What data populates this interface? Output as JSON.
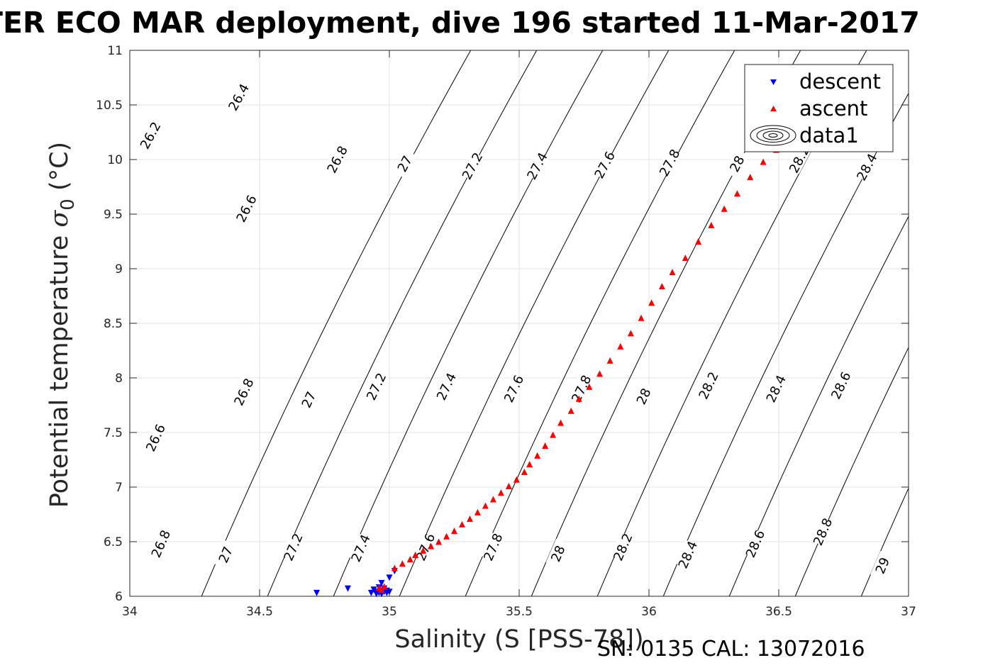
{
  "title": "TER ECO MAR deployment, dive 196 started 11-Mar-2017",
  "footer": "SN: 0135  CAL: 13072016",
  "chart_data": {
    "type": "scatter",
    "title": "TER ECO MAR deployment, dive 196 started 11-Mar-2017",
    "xlabel": "Salinity (S [PSS-78])",
    "ylabel_text": "Potential temperature ",
    "ylabel_sigma": "σ",
    "ylabel_sub": "0",
    "ylabel_unit": " (°C)",
    "xlim": [
      34,
      37
    ],
    "ylim": [
      6,
      11
    ],
    "xticks": [
      "34",
      "34.5",
      "35",
      "35.5",
      "36",
      "36.5",
      "37"
    ],
    "yticks": [
      "6",
      "6.5",
      "7",
      "7.5",
      "8",
      "8.5",
      "9",
      "9.5",
      "10",
      "10.5",
      "11"
    ],
    "grid": true,
    "legend_position": "top-right",
    "legend": [
      "descent",
      "ascent",
      "data1"
    ],
    "series": [
      {
        "name": "descent",
        "marker": "triangle-down",
        "color": "#0000ff",
        "points": [
          [
            34.72,
            6.03
          ],
          [
            34.84,
            6.07
          ],
          [
            34.93,
            6.03
          ],
          [
            34.94,
            6.06
          ],
          [
            34.95,
            6.02
          ],
          [
            34.95,
            6.04
          ],
          [
            34.96,
            6.03
          ],
          [
            34.96,
            6.08
          ],
          [
            34.97,
            6.02
          ],
          [
            34.97,
            6.05
          ],
          [
            34.97,
            6.12
          ],
          [
            34.98,
            6.04
          ],
          [
            34.98,
            6.07
          ],
          [
            34.99,
            6.03
          ],
          [
            34.99,
            6.05
          ],
          [
            35.0,
            6.04
          ],
          [
            35.0,
            6.17
          ],
          [
            35.02,
            6.23
          ]
        ]
      },
      {
        "name": "ascent",
        "marker": "triangle-up",
        "color": "#ff0000",
        "points": [
          [
            34.96,
            6.08
          ],
          [
            34.97,
            6.06
          ],
          [
            34.98,
            6.09
          ],
          [
            35.02,
            6.26
          ],
          [
            35.05,
            6.3
          ],
          [
            35.08,
            6.34
          ],
          [
            35.1,
            6.38
          ],
          [
            35.13,
            6.42
          ],
          [
            35.16,
            6.46
          ],
          [
            35.19,
            6.5
          ],
          [
            35.22,
            6.55
          ],
          [
            35.25,
            6.6
          ],
          [
            35.28,
            6.66
          ],
          [
            35.31,
            6.71
          ],
          [
            35.34,
            6.77
          ],
          [
            35.37,
            6.83
          ],
          [
            35.4,
            6.89
          ],
          [
            35.43,
            6.95
          ],
          [
            35.46,
            7.01
          ],
          [
            35.49,
            7.07
          ],
          [
            35.52,
            7.14
          ],
          [
            35.54,
            7.21
          ],
          [
            35.57,
            7.29
          ],
          [
            35.6,
            7.38
          ],
          [
            35.63,
            7.48
          ],
          [
            35.66,
            7.59
          ],
          [
            35.7,
            7.7
          ],
          [
            35.73,
            7.81
          ],
          [
            35.77,
            7.92
          ],
          [
            35.81,
            8.04
          ],
          [
            35.85,
            8.16
          ],
          [
            35.89,
            8.29
          ],
          [
            35.93,
            8.41
          ],
          [
            35.97,
            8.55
          ],
          [
            36.01,
            8.69
          ],
          [
            36.05,
            8.84
          ],
          [
            36.09,
            8.97
          ],
          [
            36.14,
            9.1
          ],
          [
            36.19,
            9.25
          ],
          [
            36.24,
            9.4
          ],
          [
            36.29,
            9.55
          ],
          [
            36.34,
            9.69
          ],
          [
            36.39,
            9.84
          ],
          [
            36.44,
            9.98
          ],
          [
            36.49,
            10.09
          ]
        ]
      }
    ],
    "contour_labels": [
      {
        "v": "26.2",
        "x": 34.08,
        "y": 10.22
      },
      {
        "v": "26.4",
        "x": 34.42,
        "y": 10.57
      },
      {
        "v": "26.6",
        "x": 34.45,
        "y": 9.55
      },
      {
        "v": "26.8",
        "x": 34.8,
        "y": 10.0
      },
      {
        "v": "27",
        "x": 35.06,
        "y": 9.96
      },
      {
        "v": "27.2",
        "x": 35.32,
        "y": 9.94
      },
      {
        "v": "27.4",
        "x": 35.57,
        "y": 9.94
      },
      {
        "v": "27.6",
        "x": 35.83,
        "y": 9.95
      },
      {
        "v": "27.8",
        "x": 36.08,
        "y": 9.97
      },
      {
        "v": "28",
        "x": 36.34,
        "y": 9.96
      },
      {
        "v": "28.2",
        "x": 36.58,
        "y": 10.0
      },
      {
        "v": "28.4",
        "x": 36.84,
        "y": 9.93
      },
      {
        "v": "26.6",
        "x": 34.1,
        "y": 7.45
      },
      {
        "v": "26.8",
        "x": 34.44,
        "y": 7.87
      },
      {
        "v": "27",
        "x": 34.69,
        "y": 7.8
      },
      {
        "v": "27.2",
        "x": 34.95,
        "y": 7.92
      },
      {
        "v": "27.4",
        "x": 35.22,
        "y": 7.92
      },
      {
        "v": "27.6",
        "x": 35.48,
        "y": 7.9
      },
      {
        "v": "27.8",
        "x": 35.74,
        "y": 7.9
      },
      {
        "v": "28",
        "x": 35.98,
        "y": 7.83
      },
      {
        "v": "28.2",
        "x": 36.23,
        "y": 7.93
      },
      {
        "v": "28.4",
        "x": 36.49,
        "y": 7.9
      },
      {
        "v": "28.6",
        "x": 36.74,
        "y": 7.93
      },
      {
        "v": "26.8",
        "x": 34.12,
        "y": 6.48
      },
      {
        "v": "27",
        "x": 34.37,
        "y": 6.38
      },
      {
        "v": "27.2",
        "x": 34.63,
        "y": 6.45
      },
      {
        "v": "27.4",
        "x": 34.89,
        "y": 6.44
      },
      {
        "v": "27.6",
        "x": 35.14,
        "y": 6.45
      },
      {
        "v": "27.8",
        "x": 35.4,
        "y": 6.45
      },
      {
        "v": "28",
        "x": 35.65,
        "y": 6.39
      },
      {
        "v": "28.2",
        "x": 35.9,
        "y": 6.45
      },
      {
        "v": "28.4",
        "x": 36.15,
        "y": 6.38
      },
      {
        "v": "28.6",
        "x": 36.41,
        "y": 6.48
      },
      {
        "v": "28.8",
        "x": 36.67,
        "y": 6.59
      },
      {
        "v": "29",
        "x": 36.9,
        "y": 6.28
      }
    ]
  }
}
